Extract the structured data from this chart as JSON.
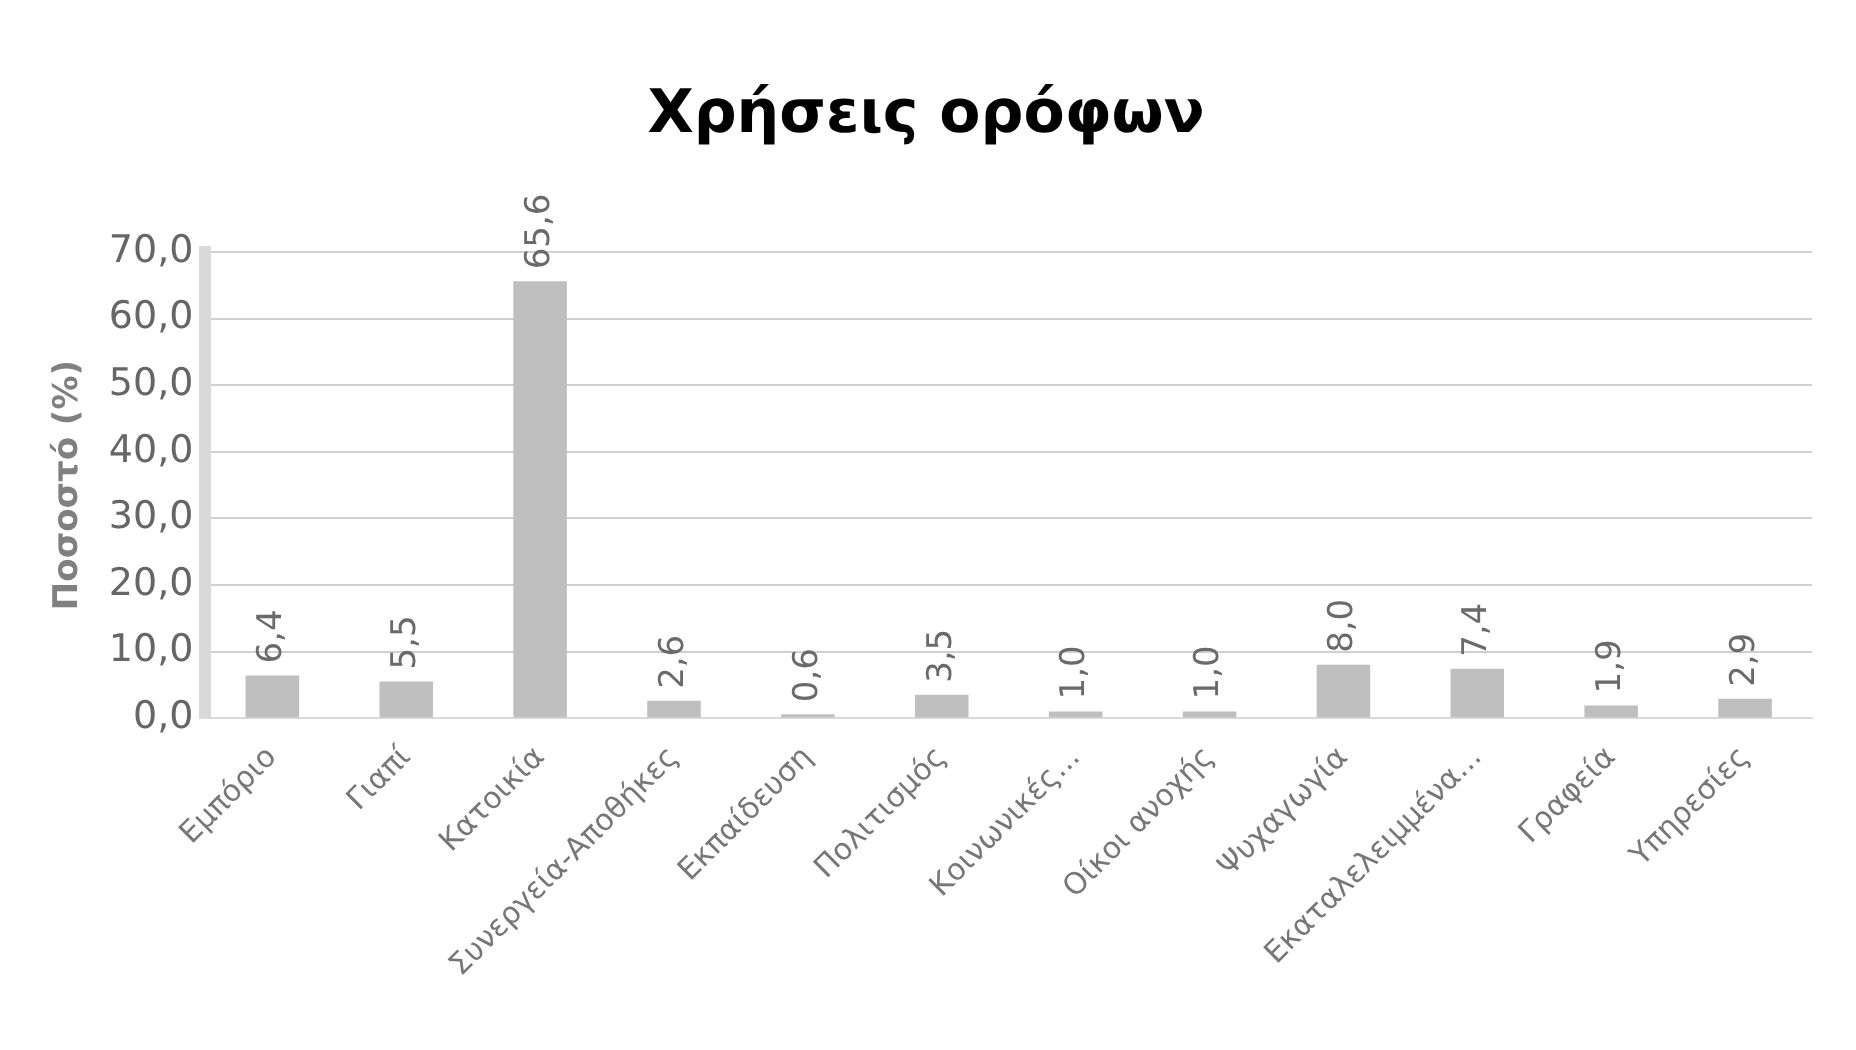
{
  "chart_data": {
    "type": "bar",
    "title": "Χρήσεις ορόφων",
    "ylabel": "Ποσοστό (%)",
    "categories": [
      "Εμπόριο",
      "Γιαπί",
      "Κατοικία",
      "Συνεργεία-Αποθήκες",
      "Εκπαίδευση",
      "Πολιτισμός",
      "Κοινωνικές...",
      "Οίκοι ανοχής",
      "Ψυχαγωγία",
      "Εκαταλελειμμένα...",
      "Γραφεία",
      "Υπηρεσίες"
    ],
    "values": [
      6.4,
      5.5,
      65.6,
      2.6,
      0.6,
      3.5,
      1.0,
      1.0,
      8.0,
      7.4,
      1.9,
      2.9
    ],
    "value_labels": [
      "6,4",
      "5,5",
      "65,6",
      "2,6",
      "0,6",
      "3,5",
      "1,0",
      "1,0",
      "8,0",
      "7,4",
      "1,9",
      "2,9"
    ],
    "color": "#bfbfbf",
    "ylim": [
      0,
      70
    ],
    "yticks": [
      {
        "value": 0,
        "label": "0,0"
      },
      {
        "value": 10,
        "label": "10,0"
      },
      {
        "value": 20,
        "label": "20,0"
      },
      {
        "value": 30,
        "label": "30,0"
      },
      {
        "value": 40,
        "label": "40,0"
      },
      {
        "value": 50,
        "label": "50,0"
      },
      {
        "value": 60,
        "label": "60,0"
      },
      {
        "value": 70,
        "label": "70,0"
      }
    ],
    "grid": "y"
  }
}
